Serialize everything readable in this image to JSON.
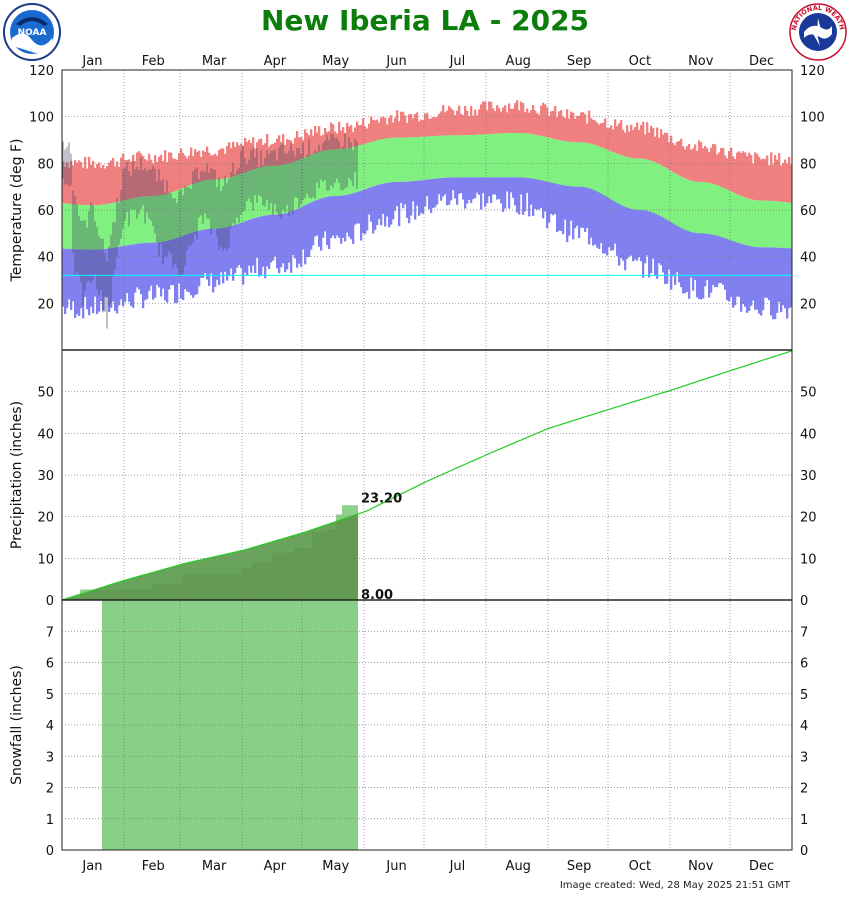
{
  "header": {
    "title": "New Iberia LA - 2025",
    "noaa_logo": "noaa-logo",
    "nws_logo": "national-weather-service-logo",
    "nws_logo_text": "NATIONAL WEATHER SERVICE"
  },
  "footer": {
    "created": "Image created: Wed, 28 May 2025 21:51 GMT"
  },
  "chart_data": [
    {
      "type": "bar",
      "name": "temperature",
      "ylabel": "Temperature (deg F)",
      "xlabel": "",
      "months": [
        "Jan",
        "Feb",
        "Mar",
        "Apr",
        "May",
        "Jun",
        "Jul",
        "Aug",
        "Sep",
        "Oct",
        "Nov",
        "Dec"
      ],
      "ylim": [
        0,
        120
      ],
      "yticks": [
        20,
        40,
        60,
        80,
        100,
        120
      ],
      "reference_line": 32,
      "grid": true,
      "colors": {
        "record_high": "#f08080",
        "normal": "#80f080",
        "record_low": "#8080f0",
        "observed": "#3a3a5a",
        "freezing": "#00ffff"
      },
      "normal_high_monthly": [
        62,
        66,
        73,
        79,
        86,
        91,
        92,
        93,
        89,
        82,
        72,
        64
      ],
      "normal_low_monthly": [
        43,
        46,
        52,
        58,
        66,
        72,
        74,
        74,
        70,
        60,
        50,
        44
      ],
      "record_high_monthly": [
        80,
        83,
        86,
        90,
        95,
        100,
        103,
        105,
        100,
        95,
        87,
        82
      ],
      "record_low_monthly": [
        18,
        23,
        29,
        36,
        47,
        58,
        65,
        63,
        50,
        36,
        26,
        18
      ],
      "observed_daily_through": "May 28",
      "observed_sample": [
        {
          "day": 5,
          "high": 70,
          "low": 38
        },
        {
          "day": 10,
          "high": 52,
          "low": 22
        },
        {
          "day": 15,
          "high": 62,
          "low": 32
        },
        {
          "day": 20,
          "high": 44,
          "low": 20
        },
        {
          "day": 22,
          "high": 40,
          "low": 12
        },
        {
          "day": 30,
          "high": 76,
          "low": 55
        },
        {
          "day": 40,
          "high": 80,
          "low": 60
        },
        {
          "day": 50,
          "high": 72,
          "low": 40
        },
        {
          "day": 60,
          "high": 65,
          "low": 35
        },
        {
          "day": 70,
          "high": 80,
          "low": 58
        },
        {
          "day": 80,
          "high": 70,
          "low": 42
        },
        {
          "day": 90,
          "high": 84,
          "low": 62
        },
        {
          "day": 100,
          "high": 82,
          "low": 64
        },
        {
          "day": 110,
          "high": 85,
          "low": 58
        },
        {
          "day": 120,
          "high": 86,
          "low": 66
        },
        {
          "day": 130,
          "high": 88,
          "low": 70
        },
        {
          "day": 140,
          "high": 90,
          "low": 72
        },
        {
          "day": 147,
          "high": 88,
          "low": 73
        }
      ]
    },
    {
      "type": "area",
      "name": "precipitation",
      "ylabel": "Precipitation (inches)",
      "ylim": [
        0,
        60
      ],
      "yticks": [
        0,
        10,
        20,
        30,
        40,
        50
      ],
      "normal_cumulative_monthly_end": [
        4.6,
        8.7,
        12.0,
        16.3,
        21.3,
        28.5,
        35.0,
        41.2,
        45.8,
        50.3,
        55.1,
        59.8
      ],
      "observed_cumulative_steps": [
        {
          "day": 0,
          "value": 0
        },
        {
          "day": 4,
          "value": 0.5
        },
        {
          "day": 9,
          "value": 2.5
        },
        {
          "day": 40,
          "value": 2.6
        },
        {
          "day": 45,
          "value": 4.0
        },
        {
          "day": 60,
          "value": 6.2
        },
        {
          "day": 90,
          "value": 7.6
        },
        {
          "day": 95,
          "value": 9.2
        },
        {
          "day": 105,
          "value": 11.4
        },
        {
          "day": 116,
          "value": 12.5
        },
        {
          "day": 125,
          "value": 16.4
        },
        {
          "day": 133,
          "value": 17.0
        },
        {
          "day": 137,
          "value": 20.5
        },
        {
          "day": 140,
          "value": 22.7
        },
        {
          "day": 148,
          "value": 23.2
        }
      ],
      "observed_total_label": "23.20",
      "snowfall_total_label": "8.00",
      "colors": {
        "observed_above": "#bc9e96",
        "observed_below": "#5a9a4a",
        "normal_line": "#22cc22",
        "normal_fill": "#5a9a4a"
      }
    },
    {
      "type": "bar",
      "name": "snowfall",
      "ylabel": "Snowfall (inches)",
      "ylim": [
        0,
        8
      ],
      "yticks": [
        0,
        1,
        2,
        3,
        4,
        5,
        6,
        7
      ],
      "observed_from_day": 20,
      "observed_through_day": 148,
      "observed_level": 8,
      "colors": {
        "fill": "#88d088"
      }
    }
  ]
}
